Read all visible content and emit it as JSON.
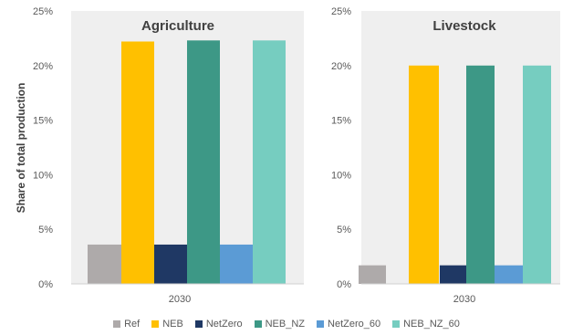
{
  "chart_data": [
    {
      "type": "bar",
      "title": "Agriculture",
      "ylabel": "Share of total production",
      "categories": [
        "2030"
      ],
      "ylim": [
        0,
        0.25
      ],
      "yticks": [
        "0%",
        "5%",
        "10%",
        "15%",
        "20%",
        "25%"
      ],
      "grid": false,
      "series": [
        {
          "name": "Ref",
          "values": [
            0.036
          ]
        },
        {
          "name": "NEB",
          "values": [
            0.222
          ]
        },
        {
          "name": "NetZero",
          "values": [
            0.036
          ]
        },
        {
          "name": "NEB_NZ",
          "values": [
            0.223
          ]
        },
        {
          "name": "NetZero_60",
          "values": [
            0.036
          ]
        },
        {
          "name": "NEB_NZ_60",
          "values": [
            0.223
          ]
        }
      ]
    },
    {
      "type": "bar",
      "title": "Livestock",
      "ylabel": "",
      "categories": [
        "2030"
      ],
      "ylim": [
        0,
        0.25
      ],
      "yticks": [
        "0%",
        "5%",
        "10%",
        "15%",
        "20%",
        "25%"
      ],
      "grid": false,
      "series": [
        {
          "name": "Ref",
          "values": [
            0.017
          ]
        },
        {
          "name": "NEB",
          "values": [
            0.2
          ]
        },
        {
          "name": "NetZero",
          "values": [
            0.017
          ]
        },
        {
          "name": "NEB_NZ",
          "values": [
            0.2
          ]
        },
        {
          "name": "NetZero_60",
          "values": [
            0.017
          ]
        },
        {
          "name": "NEB_NZ_60",
          "values": [
            0.2
          ]
        }
      ]
    }
  ],
  "legend": {
    "position": "bottom",
    "items": [
      {
        "name": "Ref",
        "color": "#aeaaaa"
      },
      {
        "name": "NEB",
        "color": "#ffc000"
      },
      {
        "name": "NetZero",
        "color": "#1f3864"
      },
      {
        "name": "NEB_NZ",
        "color": "#3d9886"
      },
      {
        "name": "NetZero_60",
        "color": "#5b9bd5"
      },
      {
        "name": "NEB_NZ_60",
        "color": "#76cdc0"
      }
    ]
  },
  "colors": {
    "plot_background": "#efefef"
  }
}
